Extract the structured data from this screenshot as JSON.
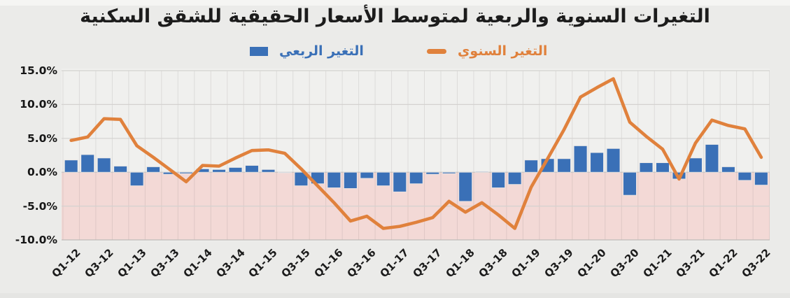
{
  "title": "التغيرات السنوية والربعية لمتوسط الأسعار الحقيقية للشقق السكنية",
  "legend": {
    "quarterly": {
      "label": "التغير الربعي",
      "color": "#3a70b7",
      "marker": "square"
    },
    "annual": {
      "label": "التغير السنوي",
      "color": "#e0813c",
      "marker": "dash"
    }
  },
  "y_axis": {
    "tick_labels": [
      "15.0%",
      "10.0%",
      "5.0%",
      "0.0%",
      "-5.0%",
      "-10.0%"
    ],
    "tick_values": [
      15,
      10,
      5,
      0,
      -5,
      -10
    ]
  },
  "x_axis": {
    "tick_labels": [
      "Q1-12",
      "Q3-12",
      "Q1-13",
      "Q3-13",
      "Q1-14",
      "Q3-14",
      "Q1-15",
      "Q3-15",
      "Q1-16",
      "Q3-16",
      "Q1-17",
      "Q3-17",
      "Q1-18",
      "Q3-18",
      "Q1-19",
      "Q3-19",
      "Q1-20",
      "Q3-20",
      "Q1-21",
      "Q3-21",
      "Q1-22",
      "Q3-22"
    ]
  },
  "chart_data": {
    "type": "bar+line",
    "title": "التغيرات السنوية والربعية لمتوسط الأسعار الحقيقية للشقق السكنية",
    "categories": [
      "Q1-12",
      "Q2-12",
      "Q3-12",
      "Q4-12",
      "Q1-13",
      "Q2-13",
      "Q3-13",
      "Q4-13",
      "Q1-14",
      "Q2-14",
      "Q3-14",
      "Q4-14",
      "Q1-15",
      "Q2-15",
      "Q3-15",
      "Q4-15",
      "Q1-16",
      "Q2-16",
      "Q3-16",
      "Q4-16",
      "Q1-17",
      "Q2-17",
      "Q3-17",
      "Q4-17",
      "Q1-18",
      "Q2-18",
      "Q3-18",
      "Q4-18",
      "Q1-19",
      "Q2-19",
      "Q3-19",
      "Q4-19",
      "Q1-20",
      "Q2-20",
      "Q3-20",
      "Q4-20",
      "Q1-21",
      "Q2-21",
      "Q3-21",
      "Q4-21",
      "Q1-22",
      "Q2-22",
      "Q3-22"
    ],
    "series": [
      {
        "name": "التغير الربعي",
        "type": "bar",
        "color": "#3a70b7",
        "unit": "%",
        "values": [
          1.8,
          2.6,
          2.1,
          0.9,
          -2.0,
          0.8,
          -0.3,
          -0.2,
          0.5,
          0.4,
          0.7,
          1.0,
          0.4,
          0.0,
          -2.0,
          -1.7,
          -2.3,
          -2.4,
          -0.9,
          -2.0,
          -2.9,
          -1.7,
          -0.3,
          -0.2,
          -4.3,
          0.1,
          -2.3,
          -1.8,
          1.8,
          2.0,
          2.0,
          3.9,
          2.9,
          3.5,
          -3.4,
          1.4,
          1.4,
          -1.0,
          2.1,
          4.1,
          0.8,
          -1.2,
          -1.9
        ]
      },
      {
        "name": "التغير السنوي",
        "type": "line",
        "color": "#e0813c",
        "unit": "%",
        "values": [
          4.7,
          5.2,
          7.9,
          7.8,
          3.9,
          2.2,
          0.4,
          -1.4,
          1.0,
          0.9,
          2.1,
          3.2,
          3.3,
          2.8,
          0.5,
          -2.0,
          -4.5,
          -7.2,
          -6.5,
          -8.3,
          -8.0,
          -7.4,
          -6.7,
          -4.3,
          -5.9,
          -4.5,
          -6.3,
          -8.3,
          -2.2,
          2.0,
          6.3,
          11.1,
          12.5,
          13.8,
          7.4,
          5.3,
          3.4,
          -1.0,
          4.3,
          7.7,
          6.9,
          6.4,
          2.2
        ]
      }
    ],
    "ylim": [
      -10,
      15
    ],
    "grid": true,
    "legend_position": "top",
    "below_zero_fill": "#f3d9d6",
    "plot_background": "#f0f0ee"
  },
  "colors": {
    "page_background": "#ebebe9",
    "bar_blue": "#3a70b7",
    "line_orange": "#e0813c",
    "negative_region_pink": "#f3d9d6",
    "gridline": "#d4d2d0",
    "text": "#1b1b1b"
  }
}
